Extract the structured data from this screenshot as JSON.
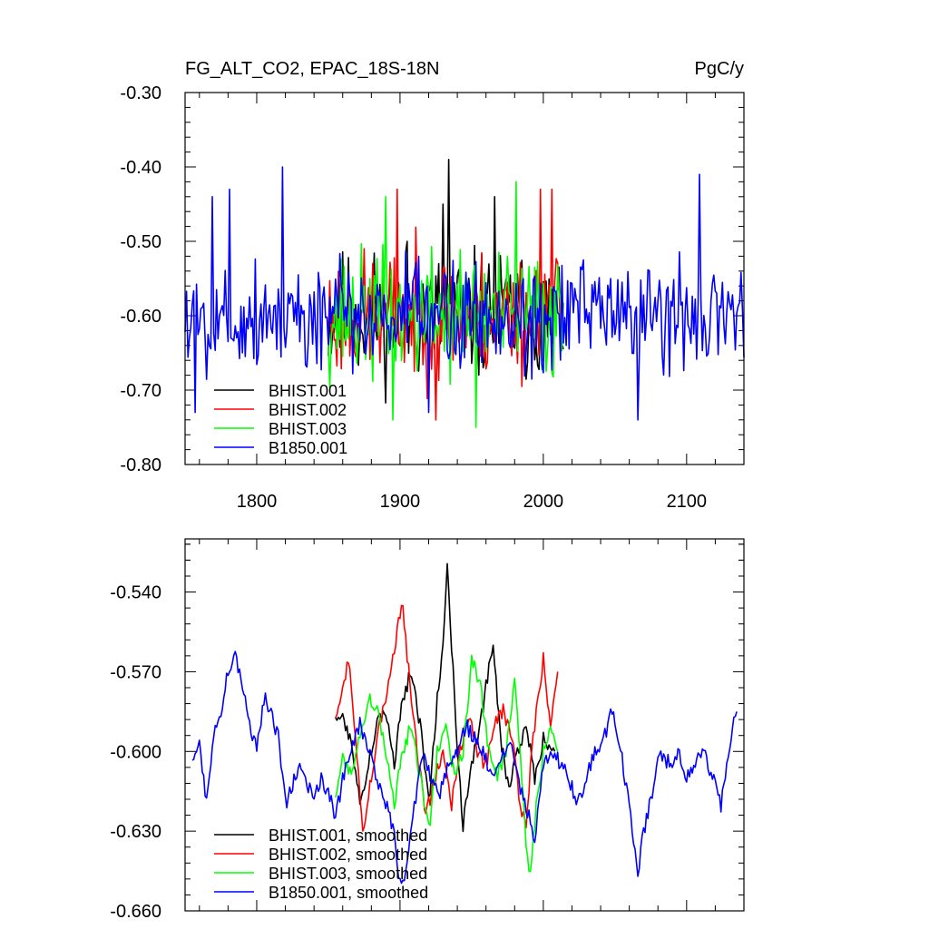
{
  "chart_data": [
    {
      "type": "line",
      "title_left": "FG_ALT_CO2, EPAC_18S-18N",
      "title_right": "PgC/y",
      "xlim": [
        1750,
        2140
      ],
      "ylim": [
        -0.8,
        -0.3
      ],
      "xticks": [
        1800,
        1900,
        2000,
        2100
      ],
      "xtick_labels": [
        "1800",
        "1900",
        "2000",
        "2100"
      ],
      "yticks": [
        -0.8,
        -0.7,
        -0.6,
        -0.5,
        -0.4,
        -0.3
      ],
      "ytick_labels": [
        "-0.80",
        "-0.70",
        "-0.60",
        "-0.50",
        "-0.40",
        "-0.30"
      ],
      "legend": [
        "BHIST.001",
        "BHIST.002",
        "BHIST.003",
        "B1850.001"
      ],
      "series": [
        {
          "name": "BHIST.001",
          "color": "#000000",
          "x_start": 1850,
          "x_end": 2014,
          "mean": -0.6,
          "amp": 0.095,
          "seed": 11,
          "peaks": [
            [
              1930,
              -0.45
            ],
            [
              1934,
              -0.39
            ],
            [
              1905,
              -0.5
            ],
            [
              1966,
              -0.44
            ]
          ]
        },
        {
          "name": "BHIST.002",
          "color": "#ff0000",
          "x_start": 1850,
          "x_end": 2014,
          "mean": -0.6,
          "amp": 0.095,
          "seed": 23,
          "peaks": [
            [
              1898,
              -0.43
            ],
            [
              1925,
              -0.74
            ],
            [
              1998,
              -0.43
            ],
            [
              2006,
              -0.43
            ]
          ]
        },
        {
          "name": "BHIST.003",
          "color": "#00ff00",
          "x_start": 1850,
          "x_end": 2014,
          "mean": -0.6,
          "amp": 0.095,
          "seed": 37,
          "peaks": [
            [
              1981,
              -0.42
            ],
            [
              1895,
              -0.74
            ],
            [
              1953,
              -0.75
            ],
            [
              1890,
              -0.44
            ]
          ]
        },
        {
          "name": "B1850.001",
          "color": "#0000ff",
          "x_start": 1750,
          "x_end": 2140,
          "mean": -0.6,
          "amp": 0.085,
          "seed": 5,
          "peaks": [
            [
              1818,
              -0.4
            ],
            [
              2109,
              -0.41
            ],
            [
              1781,
              -0.43
            ],
            [
              1769,
              -0.44
            ],
            [
              1757,
              -0.73
            ],
            [
              2066,
              -0.74
            ],
            [
              1920,
              -0.73
            ]
          ]
        }
      ]
    },
    {
      "type": "line",
      "xlim": [
        1750,
        2140
      ],
      "ylim": [
        -0.66,
        -0.52
      ],
      "xticks": [
        1800,
        1900,
        2000,
        2100
      ],
      "yticks": [
        -0.66,
        -0.63,
        -0.6,
        -0.57,
        -0.54
      ],
      "ytick_labels": [
        "-0.660",
        "-0.630",
        "-0.600",
        "-0.570",
        "-0.540"
      ],
      "legend": [
        "BHIST.001, smoothed",
        "BHIST.002, smoothed",
        "BHIST.003, smoothed",
        "B1850.001, smoothed"
      ],
      "series": [
        {
          "name": "BHIST.001, smoothed",
          "color": "#000000",
          "x_start": 1855,
          "x_end": 2008,
          "knots": [
            [
              1855,
              -0.59
            ],
            [
              1860,
              -0.585
            ],
            [
              1866,
              -0.598
            ],
            [
              1872,
              -0.62
            ],
            [
              1878,
              -0.605
            ],
            [
              1884,
              -0.59
            ],
            [
              1890,
              -0.585
            ],
            [
              1896,
              -0.605
            ],
            [
              1902,
              -0.58
            ],
            [
              1908,
              -0.57
            ],
            [
              1914,
              -0.59
            ],
            [
              1920,
              -0.62
            ],
            [
              1926,
              -0.58
            ],
            [
              1930,
              -0.56
            ],
            [
              1933,
              -0.53
            ],
            [
              1936,
              -0.56
            ],
            [
              1940,
              -0.6
            ],
            [
              1944,
              -0.628
            ],
            [
              1948,
              -0.61
            ],
            [
              1952,
              -0.6
            ],
            [
              1956,
              -0.59
            ],
            [
              1960,
              -0.575
            ],
            [
              1965,
              -0.56
            ],
            [
              1970,
              -0.595
            ],
            [
              1976,
              -0.615
            ],
            [
              1982,
              -0.6
            ],
            [
              1988,
              -0.59
            ],
            [
              1994,
              -0.61
            ],
            [
              2000,
              -0.595
            ],
            [
              2008,
              -0.6
            ]
          ]
        },
        {
          "name": "BHIST.002, smoothed",
          "color": "#ff0000",
          "x_start": 1855,
          "x_end": 2010,
          "knots": [
            [
              1855,
              -0.59
            ],
            [
              1860,
              -0.575
            ],
            [
              1864,
              -0.565
            ],
            [
              1868,
              -0.59
            ],
            [
              1874,
              -0.63
            ],
            [
              1880,
              -0.61
            ],
            [
              1886,
              -0.59
            ],
            [
              1892,
              -0.575
            ],
            [
              1898,
              -0.555
            ],
            [
              1902,
              -0.545
            ],
            [
              1906,
              -0.57
            ],
            [
              1912,
              -0.6
            ],
            [
              1918,
              -0.625
            ],
            [
              1924,
              -0.61
            ],
            [
              1930,
              -0.6
            ],
            [
              1936,
              -0.62
            ],
            [
              1942,
              -0.6
            ],
            [
              1948,
              -0.585
            ],
            [
              1954,
              -0.6
            ],
            [
              1960,
              -0.605
            ],
            [
              1966,
              -0.59
            ],
            [
              1972,
              -0.585
            ],
            [
              1978,
              -0.595
            ],
            [
              1984,
              -0.62
            ],
            [
              1988,
              -0.628
            ],
            [
              1992,
              -0.6
            ],
            [
              1996,
              -0.58
            ],
            [
              2000,
              -0.565
            ],
            [
              2005,
              -0.59
            ],
            [
              2010,
              -0.57
            ]
          ]
        },
        {
          "name": "BHIST.003, smoothed",
          "color": "#00ff00",
          "x_start": 1855,
          "x_end": 2010,
          "knots": [
            [
              1855,
              -0.62
            ],
            [
              1860,
              -0.6
            ],
            [
              1866,
              -0.61
            ],
            [
              1872,
              -0.595
            ],
            [
              1878,
              -0.58
            ],
            [
              1884,
              -0.585
            ],
            [
              1890,
              -0.6
            ],
            [
              1896,
              -0.62
            ],
            [
              1902,
              -0.6
            ],
            [
              1908,
              -0.59
            ],
            [
              1914,
              -0.61
            ],
            [
              1920,
              -0.63
            ],
            [
              1926,
              -0.6
            ],
            [
              1932,
              -0.59
            ],
            [
              1938,
              -0.61
            ],
            [
              1944,
              -0.6
            ],
            [
              1950,
              -0.565
            ],
            [
              1956,
              -0.575
            ],
            [
              1962,
              -0.6
            ],
            [
              1968,
              -0.61
            ],
            [
              1974,
              -0.6
            ],
            [
              1980,
              -0.575
            ],
            [
              1984,
              -0.6
            ],
            [
              1988,
              -0.635
            ],
            [
              1991,
              -0.648
            ],
            [
              1995,
              -0.62
            ],
            [
              2000,
              -0.6
            ],
            [
              2005,
              -0.59
            ],
            [
              2010,
              -0.6
            ]
          ]
        },
        {
          "name": "B1850.001, smoothed",
          "color": "#0000ff",
          "x_start": 1755,
          "x_end": 2135,
          "knots": [
            [
              1755,
              -0.606
            ],
            [
              1760,
              -0.595
            ],
            [
              1765,
              -0.62
            ],
            [
              1770,
              -0.595
            ],
            [
              1775,
              -0.585
            ],
            [
              1780,
              -0.57
            ],
            [
              1785,
              -0.565
            ],
            [
              1790,
              -0.575
            ],
            [
              1795,
              -0.59
            ],
            [
              1800,
              -0.6
            ],
            [
              1805,
              -0.58
            ],
            [
              1810,
              -0.585
            ],
            [
              1815,
              -0.595
            ],
            [
              1820,
              -0.62
            ],
            [
              1825,
              -0.612
            ],
            [
              1830,
              -0.605
            ],
            [
              1835,
              -0.612
            ],
            [
              1840,
              -0.618
            ],
            [
              1845,
              -0.61
            ],
            [
              1850,
              -0.615
            ],
            [
              1855,
              -0.625
            ],
            [
              1860,
              -0.61
            ],
            [
              1866,
              -0.6
            ],
            [
              1872,
              -0.59
            ],
            [
              1878,
              -0.6
            ],
            [
              1884,
              -0.61
            ],
            [
              1890,
              -0.62
            ],
            [
              1896,
              -0.63
            ],
            [
              1900,
              -0.65
            ],
            [
              1904,
              -0.645
            ],
            [
              1910,
              -0.62
            ],
            [
              1916,
              -0.6
            ],
            [
              1922,
              -0.61
            ],
            [
              1928,
              -0.615
            ],
            [
              1934,
              -0.605
            ],
            [
              1940,
              -0.6
            ],
            [
              1946,
              -0.59
            ],
            [
              1952,
              -0.595
            ],
            [
              1958,
              -0.6
            ],
            [
              1964,
              -0.61
            ],
            [
              1970,
              -0.605
            ],
            [
              1976,
              -0.595
            ],
            [
              1982,
              -0.61
            ],
            [
              1988,
              -0.62
            ],
            [
              1994,
              -0.635
            ],
            [
              2000,
              -0.605
            ],
            [
              2006,
              -0.6
            ],
            [
              2012,
              -0.605
            ],
            [
              2018,
              -0.61
            ],
            [
              2024,
              -0.62
            ],
            [
              2030,
              -0.61
            ],
            [
              2036,
              -0.6
            ],
            [
              2042,
              -0.595
            ],
            [
              2048,
              -0.585
            ],
            [
              2054,
              -0.6
            ],
            [
              2060,
              -0.62
            ],
            [
              2066,
              -0.645
            ],
            [
              2070,
              -0.63
            ],
            [
              2076,
              -0.615
            ],
            [
              2082,
              -0.6
            ],
            [
              2088,
              -0.605
            ],
            [
              2094,
              -0.6
            ],
            [
              2100,
              -0.61
            ],
            [
              2106,
              -0.605
            ],
            [
              2112,
              -0.6
            ],
            [
              2118,
              -0.61
            ],
            [
              2124,
              -0.62
            ],
            [
              2128,
              -0.605
            ],
            [
              2133,
              -0.59
            ],
            [
              2135,
              -0.585
            ]
          ]
        }
      ]
    }
  ]
}
